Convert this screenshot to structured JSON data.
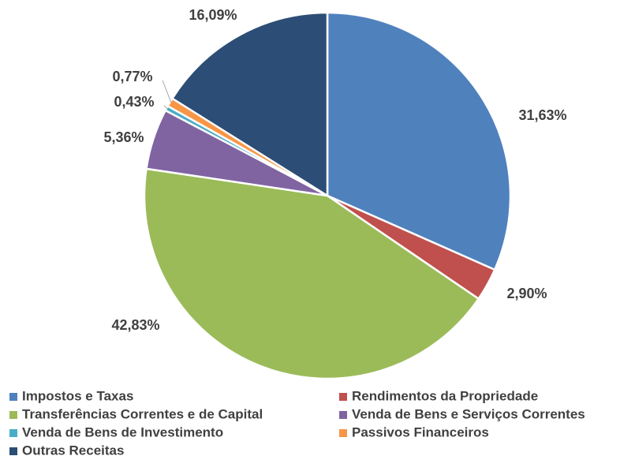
{
  "chart_data": {
    "type": "pie",
    "categories": [
      "Impostos e Taxas",
      "Rendimentos da Propriedade",
      "Transferências Correntes e de Capital",
      "Venda de Bens e Serviços Correntes",
      "Venda de Bens de Investimento",
      "Passivos Financeiros",
      "Outras Receitas"
    ],
    "values": [
      31.63,
      2.9,
      42.83,
      5.36,
      0.43,
      0.77,
      16.09
    ],
    "value_labels": [
      "31,63%",
      "2,90%",
      "42,83%",
      "5,36%",
      "0,43%",
      "0,77%",
      "16,09%"
    ],
    "colors": [
      "#4f81bd",
      "#c0504d",
      "#9bbb59",
      "#8064a2",
      "#4bacc6",
      "#f79646",
      "#2c4d75"
    ],
    "legend": "bottom"
  }
}
